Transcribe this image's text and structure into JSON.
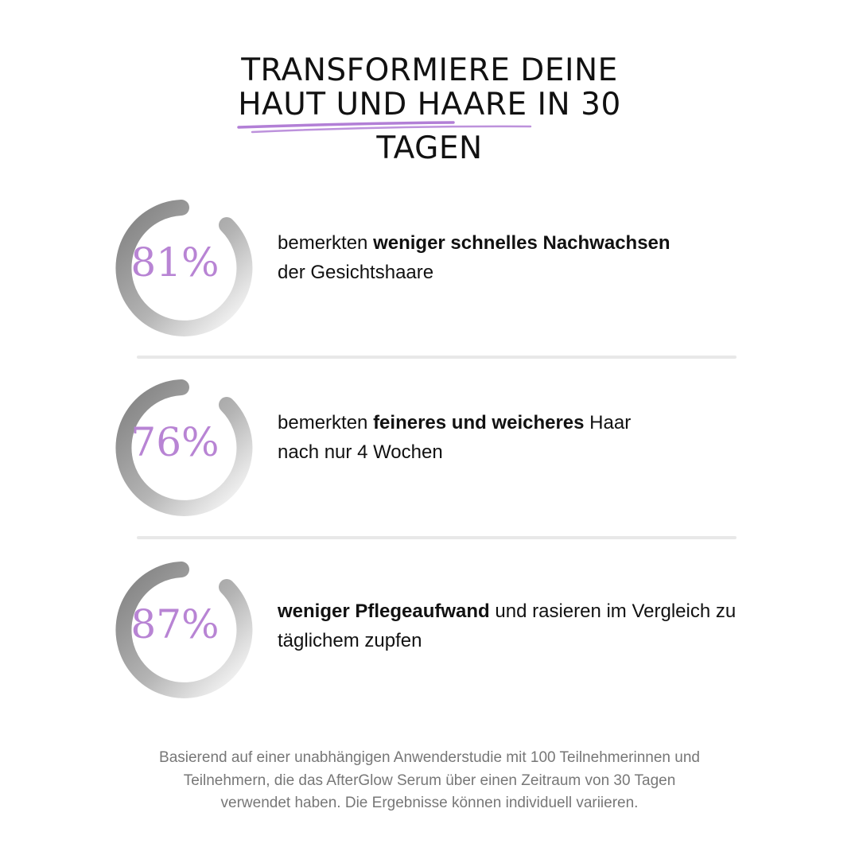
{
  "title": {
    "line1": "TRANSFORMIERE DEINE",
    "line2": "HAUT UND HAARE IN 30",
    "line3": "TAGEN",
    "underline_color": "#b27fd6"
  },
  "stats": [
    {
      "percent": "81%",
      "prefix": "bemerkten ",
      "bold": "weniger schnelles Nachwachsen",
      "suffix": " der Gesichtshaare"
    },
    {
      "percent": "76%",
      "prefix": "bemerkten ",
      "bold": "feineres und weicheres",
      "suffix": " Haar nach nur 4 Wochen"
    },
    {
      "percent": "87%",
      "prefix": "",
      "bold": "weniger Pflegeaufwand",
      "suffix": " und rasieren im Vergleich zu täglichem zupfen"
    }
  ],
  "colors": {
    "percent_text": "#b884d4",
    "ring_dark": "#888888",
    "ring_light": "#ffffff",
    "footer_text": "#777777"
  },
  "footer": "Basierend auf einer unabhängigen Anwenderstudie mit 100 Teilnehmerinnen und Teilnehmern, die das AfterGlow Serum über einen Zeitraum von 30 Tagen verwendet haben. Die Ergebnisse können individuell variieren."
}
